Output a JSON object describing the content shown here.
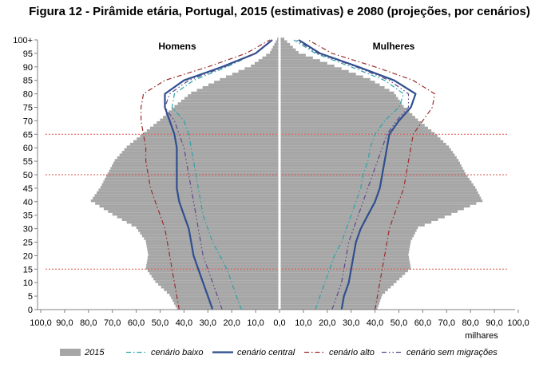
{
  "chart_data": {
    "type": "bar",
    "title": "Figura 12 - Pirâmide etária, Portugal, 2015 (estimativas) e 2080 (projeções, por cenários)",
    "left_label": "Homens",
    "right_label": "Mulheres",
    "xunit": "milhares",
    "xtick_labels": [
      "100,0",
      "90,0",
      "80,0",
      "70,0",
      "60,0",
      "50,0",
      "40,0",
      "30,0",
      "20,0",
      "10,0",
      "0,0",
      "10,0",
      "20,0",
      "30,0",
      "40,0",
      "50,0",
      "60,0",
      "70,0",
      "80,0",
      "90,0",
      "100,0"
    ],
    "ytick_labels": [
      "0",
      "5",
      "10",
      "15",
      "20",
      "25",
      "30",
      "35",
      "40",
      "45",
      "50",
      "55",
      "60",
      "65",
      "70",
      "75",
      "80",
      "85",
      "90",
      "95",
      "100+"
    ],
    "xlim": [
      -100,
      100
    ],
    "ylim": [
      0,
      100
    ],
    "reference_ages": [
      15,
      50,
      65
    ],
    "ages": [
      0,
      5,
      10,
      15,
      20,
      25,
      30,
      35,
      40,
      45,
      50,
      55,
      60,
      65,
      70,
      75,
      80,
      85,
      90,
      95,
      100
    ],
    "bars_2015": {
      "name": "2015",
      "color": "#a6a6a6",
      "men": [
        43,
        46,
        52,
        56,
        55,
        56,
        60,
        70,
        79,
        75,
        72,
        69,
        64,
        57,
        50,
        44,
        37,
        25,
        12,
        4,
        1
      ],
      "women": [
        41,
        43,
        49,
        55,
        54,
        55,
        58,
        72,
        85,
        82,
        78,
        75,
        71,
        65,
        58,
        52,
        48,
        38,
        23,
        8,
        2
      ]
    },
    "series": [
      {
        "name": "cenário baixo",
        "color": "#2aa3a8",
        "dash": "6 3 1.5 3",
        "width": 1.2,
        "men": [
          16,
          18,
          20,
          22,
          25,
          28,
          30,
          32,
          33,
          34,
          35,
          36,
          37,
          38,
          40,
          45,
          44,
          36,
          22,
          10,
          3
        ],
        "women": [
          15,
          17,
          19,
          21,
          23,
          26,
          28,
          30,
          32,
          34,
          35,
          37,
          38,
          40,
          44,
          50,
          52,
          44,
          30,
          15,
          6
        ]
      },
      {
        "name": "cenário central",
        "color": "#2f4f8f",
        "dash": "",
        "width": 2.2,
        "men": [
          28,
          30,
          32,
          34,
          36,
          37,
          38,
          40,
          42,
          43,
          43,
          43,
          43,
          44,
          46,
          48,
          48,
          40,
          24,
          10,
          3
        ],
        "women": [
          26,
          27,
          29,
          30,
          31,
          32,
          34,
          37,
          40,
          42,
          43,
          44,
          45,
          46,
          50,
          55,
          57,
          48,
          33,
          17,
          8
        ]
      },
      {
        "name": "cenário alto",
        "color": "#9b2d2d",
        "dash": "6 3 1.5 3",
        "width": 1.2,
        "men": [
          42,
          43,
          44,
          45,
          46,
          47,
          48,
          50,
          52,
          54,
          55,
          56,
          56,
          57,
          58,
          58,
          57,
          48,
          30,
          14,
          4
        ],
        "women": [
          40,
          41,
          42,
          43,
          44,
          45,
          46,
          48,
          50,
          52,
          53,
          54,
          55,
          56,
          60,
          64,
          65,
          56,
          40,
          22,
          12
        ]
      },
      {
        "name": "cenário sem migrações",
        "color": "#5b4a8b",
        "dash": "6 3 1.5 3 1.5 3",
        "width": 1.2,
        "men": [
          24,
          26,
          28,
          30,
          32,
          33,
          34,
          35,
          36,
          37,
          38,
          39,
          40,
          42,
          44,
          48,
          46,
          38,
          23,
          10,
          3
        ],
        "women": [
          22,
          24,
          26,
          27,
          28,
          29,
          31,
          33,
          35,
          37,
          39,
          41,
          43,
          45,
          49,
          54,
          54,
          46,
          32,
          16,
          7
        ]
      }
    ],
    "legend": {
      "position": "bottom",
      "entries": [
        "2015",
        "cenário baixo",
        "cenário central",
        "cenário alto",
        "cenário sem migrações"
      ]
    }
  }
}
